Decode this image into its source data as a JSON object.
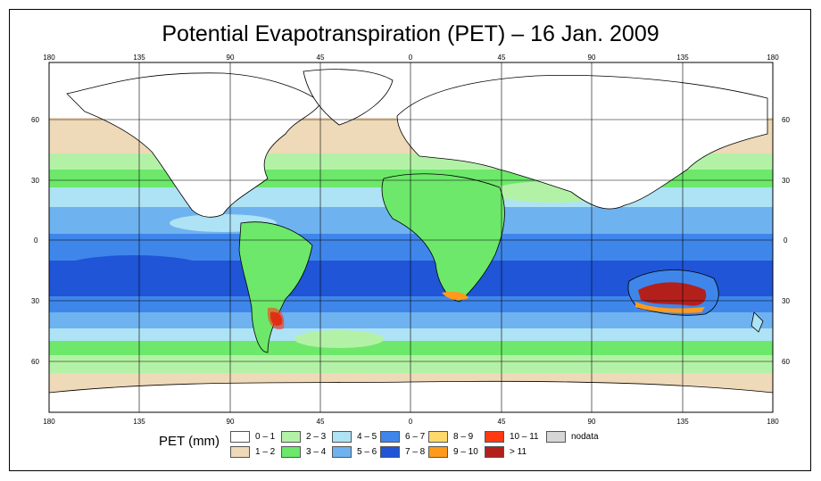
{
  "title": "Potential Evapotranspiration (PET) – 16 Jan. 2009",
  "map": {
    "lon_ticks": [
      "180",
      "135",
      "90",
      "45",
      "0",
      "45",
      "90",
      "135",
      "180"
    ],
    "lat_ticks_left": [
      "60",
      "30",
      "0",
      "30",
      "60"
    ],
    "lat_ticks_right": [
      "60",
      "30",
      "0",
      "30",
      "60"
    ],
    "bands": [
      {
        "id": "b01",
        "class": "0–1"
      },
      {
        "id": "b12",
        "class": "1–2"
      },
      {
        "id": "b23",
        "class": "2–3"
      },
      {
        "id": "b34",
        "class": "3–4"
      },
      {
        "id": "b45",
        "class": "4–5"
      },
      {
        "id": "b56",
        "class": "5–6"
      },
      {
        "id": "b67",
        "class": "6–7"
      },
      {
        "id": "b78",
        "class": "7–8"
      }
    ],
    "hotspots": [
      {
        "region": "Australia",
        "class": "> 11"
      },
      {
        "region": "Argentina",
        "class": "10 – 11"
      },
      {
        "region": "Southern Africa",
        "class": "9 – 10"
      }
    ]
  },
  "legend": {
    "title": "PET (mm)",
    "items": [
      {
        "label": "0 – 1",
        "color": "#ffffff"
      },
      {
        "label": "1 – 2",
        "color": "#eed9b8"
      },
      {
        "label": "2 – 3",
        "color": "#b3f2a6"
      },
      {
        "label": "3 – 4",
        "color": "#6de86a"
      },
      {
        "label": "4 – 5",
        "color": "#aee2f5"
      },
      {
        "label": "5 – 6",
        "color": "#6fb2f0"
      },
      {
        "label": "6 – 7",
        "color": "#3f86ea"
      },
      {
        "label": "7 – 8",
        "color": "#1f55d6"
      },
      {
        "label": "8 – 9",
        "color": "#ffd96a"
      },
      {
        "label": "9 – 10",
        "color": "#ff9a1c"
      },
      {
        "label": "10 – 11",
        "color": "#ff3a12"
      },
      {
        "label": "> 11",
        "color": "#b3201c"
      },
      {
        "label": "nodata",
        "color": "#d6d6d6"
      }
    ]
  }
}
